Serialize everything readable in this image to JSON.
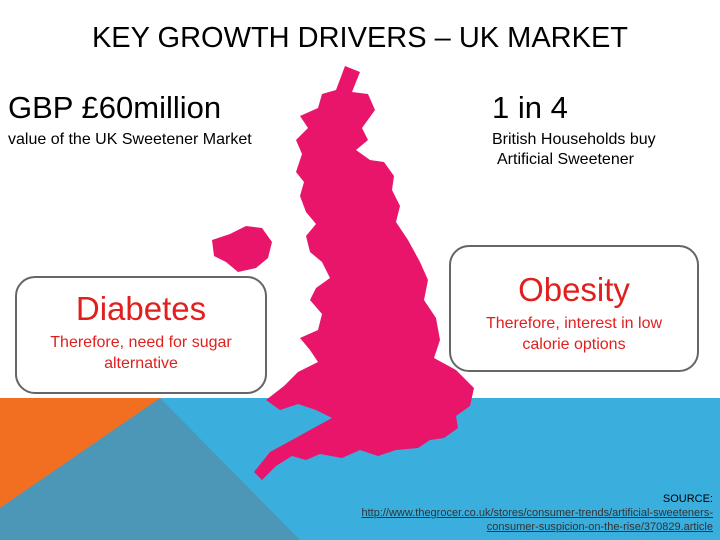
{
  "header": {
    "title": "KEY GROWTH DRIVERS – UK MARKET"
  },
  "stats": [
    {
      "headline": "GBP £60million",
      "caption": [
        "value of the UK Sweetener Market"
      ]
    },
    {
      "headline": "1 in 4",
      "caption": [
        "British Households buy",
        "Artificial Sweetener"
      ]
    }
  ],
  "boxes": [
    {
      "heading": "Diabetes",
      "text": [
        "Therefore, need for sugar",
        "alternative"
      ]
    },
    {
      "heading": "Obesity",
      "text": [
        "Therefore, interest in low",
        "calorie options"
      ]
    }
  ],
  "source": {
    "label": "SOURCE:",
    "link": [
      "http://www.thegrocer.co.uk/stores/consumer-trends/artificial-sweeteners-",
      "consumer-suspicion-on-the-rise/370829.article"
    ]
  }
}
